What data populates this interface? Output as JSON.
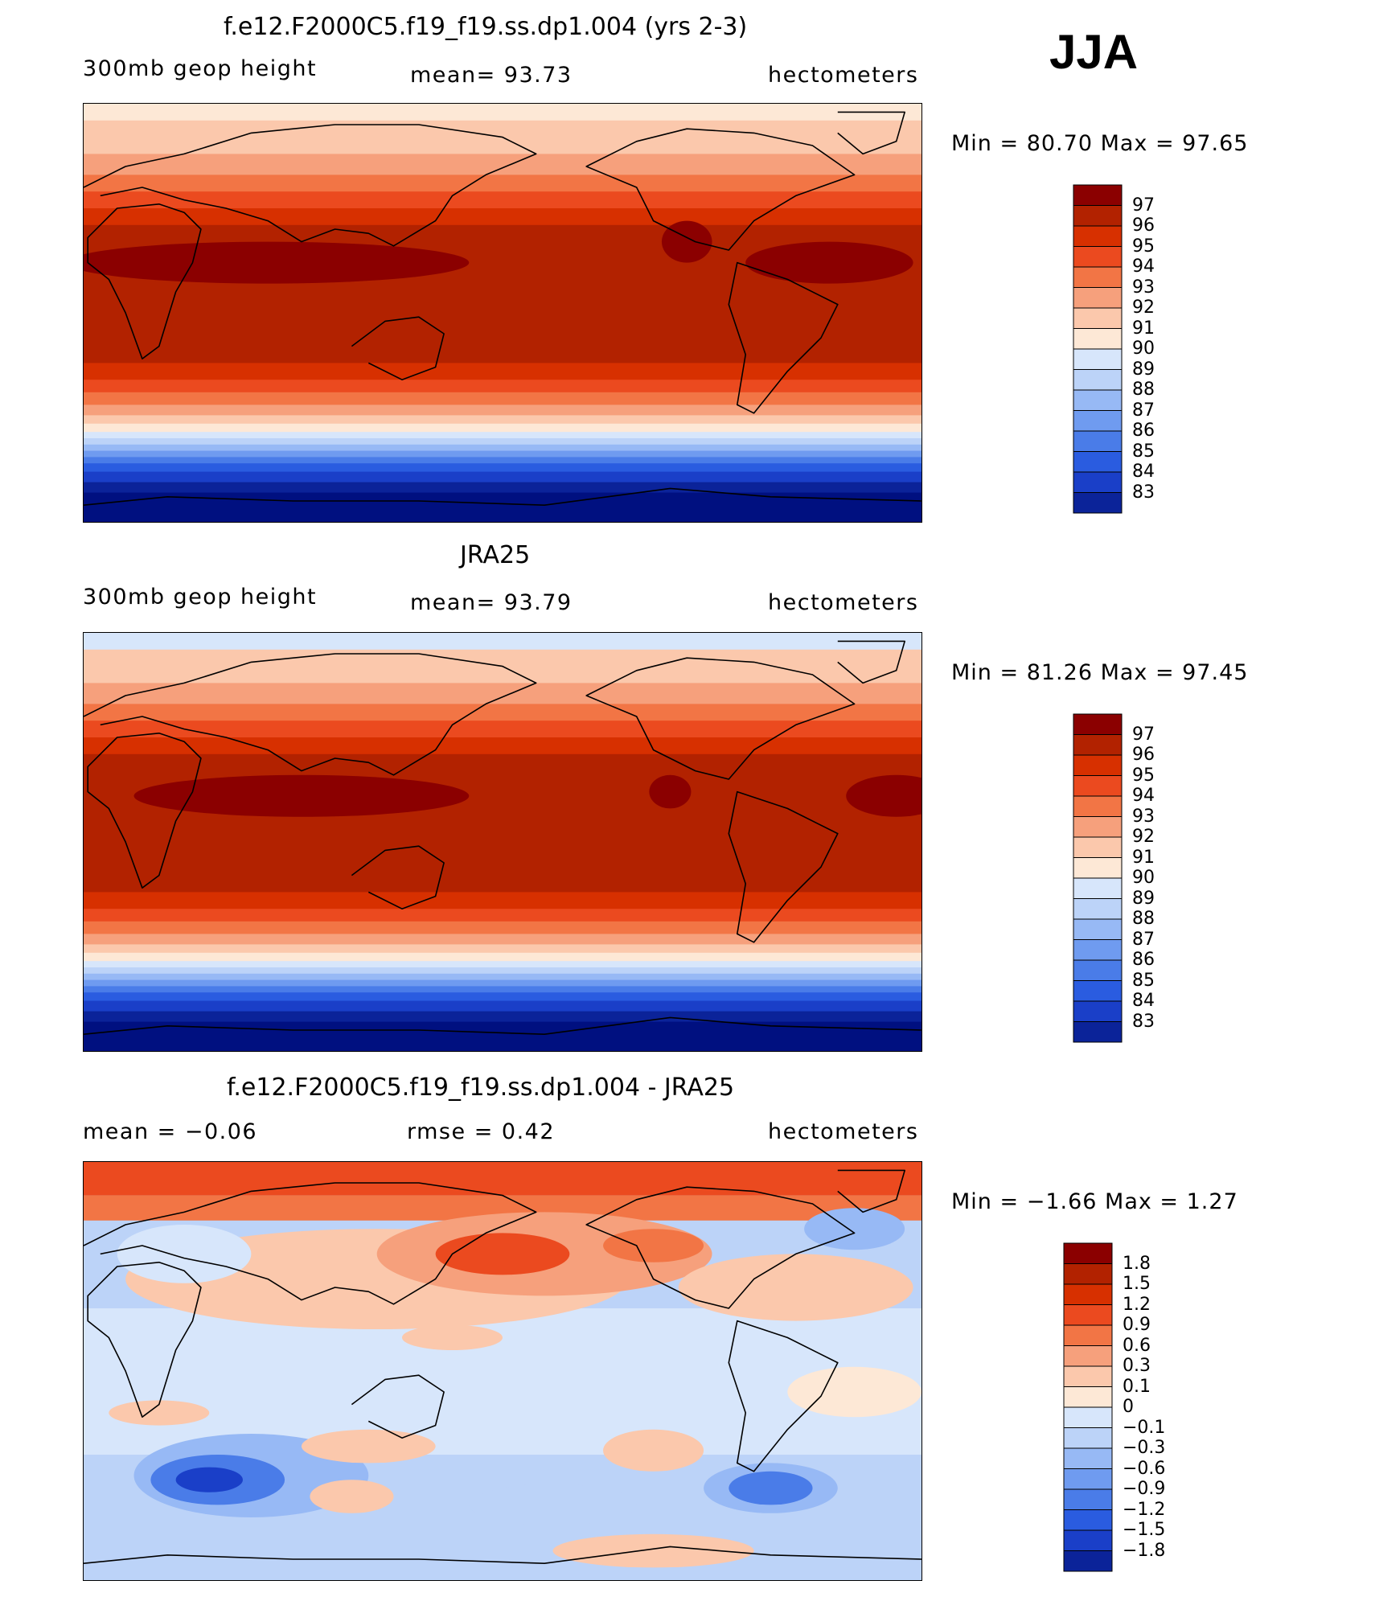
{
  "season": "JJA",
  "panels": [
    {
      "title": "f.e12.F2000C5.f19_f19.ss.dp1.004 (yrs 2-3)",
      "left_label": "300mb geop height",
      "center_label": "mean=  93.73",
      "right_label": "hectometers",
      "minmax": "Min =   80.70 Max =   97.65",
      "kind": "abs",
      "legend_labels": [
        "97",
        "96",
        "95",
        "94",
        "93",
        "92",
        "91",
        "90",
        "89",
        "88",
        "87",
        "86",
        "85",
        "84",
        "83"
      ]
    },
    {
      "title": "JRA25",
      "left_label": "300mb geop height",
      "center_label": "mean=  93.79",
      "right_label": "hectometers",
      "minmax": "Min =   81.26 Max =   97.45",
      "kind": "abs",
      "legend_labels": [
        "97",
        "96",
        "95",
        "94",
        "93",
        "92",
        "91",
        "90",
        "89",
        "88",
        "87",
        "86",
        "85",
        "84",
        "83"
      ]
    },
    {
      "title": "f.e12.F2000C5.f19_f19.ss.dp1.004 - JRA25",
      "left_label": "mean =   −0.06",
      "center_label": "rmse =    0.42",
      "right_label": "hectometers",
      "minmax": "Min =  −1.66 Max =    1.27",
      "kind": "diff",
      "legend_labels": [
        "1.8",
        "1.5",
        "1.2",
        "0.9",
        "0.6",
        "0.3",
        "0.1",
        "0",
        "−0.1",
        "−0.3",
        "−0.6",
        "−0.9",
        "−1.2",
        "−1.5",
        "−1.8"
      ]
    }
  ],
  "palette": [
    "#8b0000",
    "#b22200",
    "#d73000",
    "#eb4a1f",
    "#f27545",
    "#f6a07c",
    "#fbc8ac",
    "#fde8d6",
    "#d7e6fb",
    "#bcd3f8",
    "#97b9f5",
    "#6f9bf0",
    "#4a7ce8",
    "#2a5ce0",
    "#1a3fc8",
    "#0b2399",
    "#001080"
  ],
  "chart_data": [
    {
      "type": "heatmap",
      "title": "f.e12.F2000C5.f19_f19.ss.dp1.004 (yrs 2-3)",
      "variable": "300mb geop height",
      "units": "hectometers",
      "mean": 93.73,
      "min": 80.7,
      "max": 97.65,
      "contour_levels": [
        83,
        84,
        85,
        86,
        87,
        88,
        89,
        90,
        91,
        92,
        93,
        94,
        95,
        96,
        97
      ]
    },
    {
      "type": "heatmap",
      "title": "JRA25",
      "variable": "300mb geop height",
      "units": "hectometers",
      "mean": 93.79,
      "min": 81.26,
      "max": 97.45,
      "contour_levels": [
        83,
        84,
        85,
        86,
        87,
        88,
        89,
        90,
        91,
        92,
        93,
        94,
        95,
        96,
        97
      ]
    },
    {
      "type": "heatmap",
      "title": "f.e12.F2000C5.f19_f19.ss.dp1.004 - JRA25",
      "units": "hectometers",
      "mean": -0.06,
      "rmse": 0.42,
      "min": -1.66,
      "max": 1.27,
      "contour_levels": [
        -1.8,
        -1.5,
        -1.2,
        -0.9,
        -0.6,
        -0.3,
        -0.1,
        0,
        0.1,
        0.3,
        0.6,
        0.9,
        1.2,
        1.5,
        1.8
      ]
    }
  ]
}
